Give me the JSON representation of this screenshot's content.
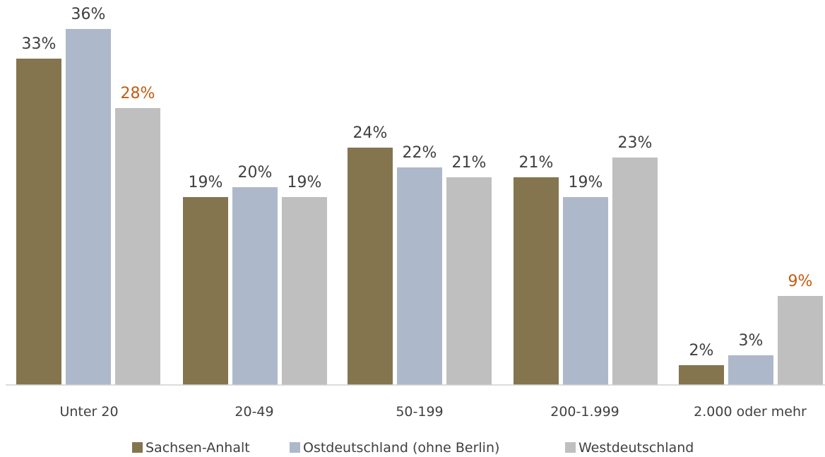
{
  "chart_data": {
    "type": "bar",
    "categories": [
      "Unter 20",
      "20-49",
      "50-199",
      "200-1.999",
      "2.000 oder mehr"
    ],
    "series": [
      {
        "name": "Sachsen-Anhalt",
        "color": "#84754E",
        "values": [
          33,
          19,
          24,
          21,
          2
        ],
        "labels": [
          "33%",
          "19%",
          "24%",
          "21%",
          "2%"
        ],
        "label_colors": [
          "#404040",
          "#404040",
          "#404040",
          "#404040",
          "#404040"
        ]
      },
      {
        "name": "Ostdeutschland (ohne Berlin)",
        "color": "#ADB9CA",
        "values": [
          36,
          20,
          22,
          19,
          3
        ],
        "labels": [
          "36%",
          "20%",
          "22%",
          "19%",
          "3%"
        ],
        "label_colors": [
          "#404040",
          "#404040",
          "#404040",
          "#404040",
          "#404040"
        ]
      },
      {
        "name": "Westdeutschland",
        "color": "#BFBFBF",
        "values": [
          28,
          19,
          21,
          23,
          9
        ],
        "labels": [
          "28%",
          "19%",
          "21%",
          "23%",
          "9%"
        ],
        "label_colors": [
          "#C55A11",
          "#404040",
          "#404040",
          "#404040",
          "#C55A11"
        ]
      }
    ],
    "ylim": [
      0,
      36
    ],
    "grid": false,
    "legend_position": "bottom"
  }
}
